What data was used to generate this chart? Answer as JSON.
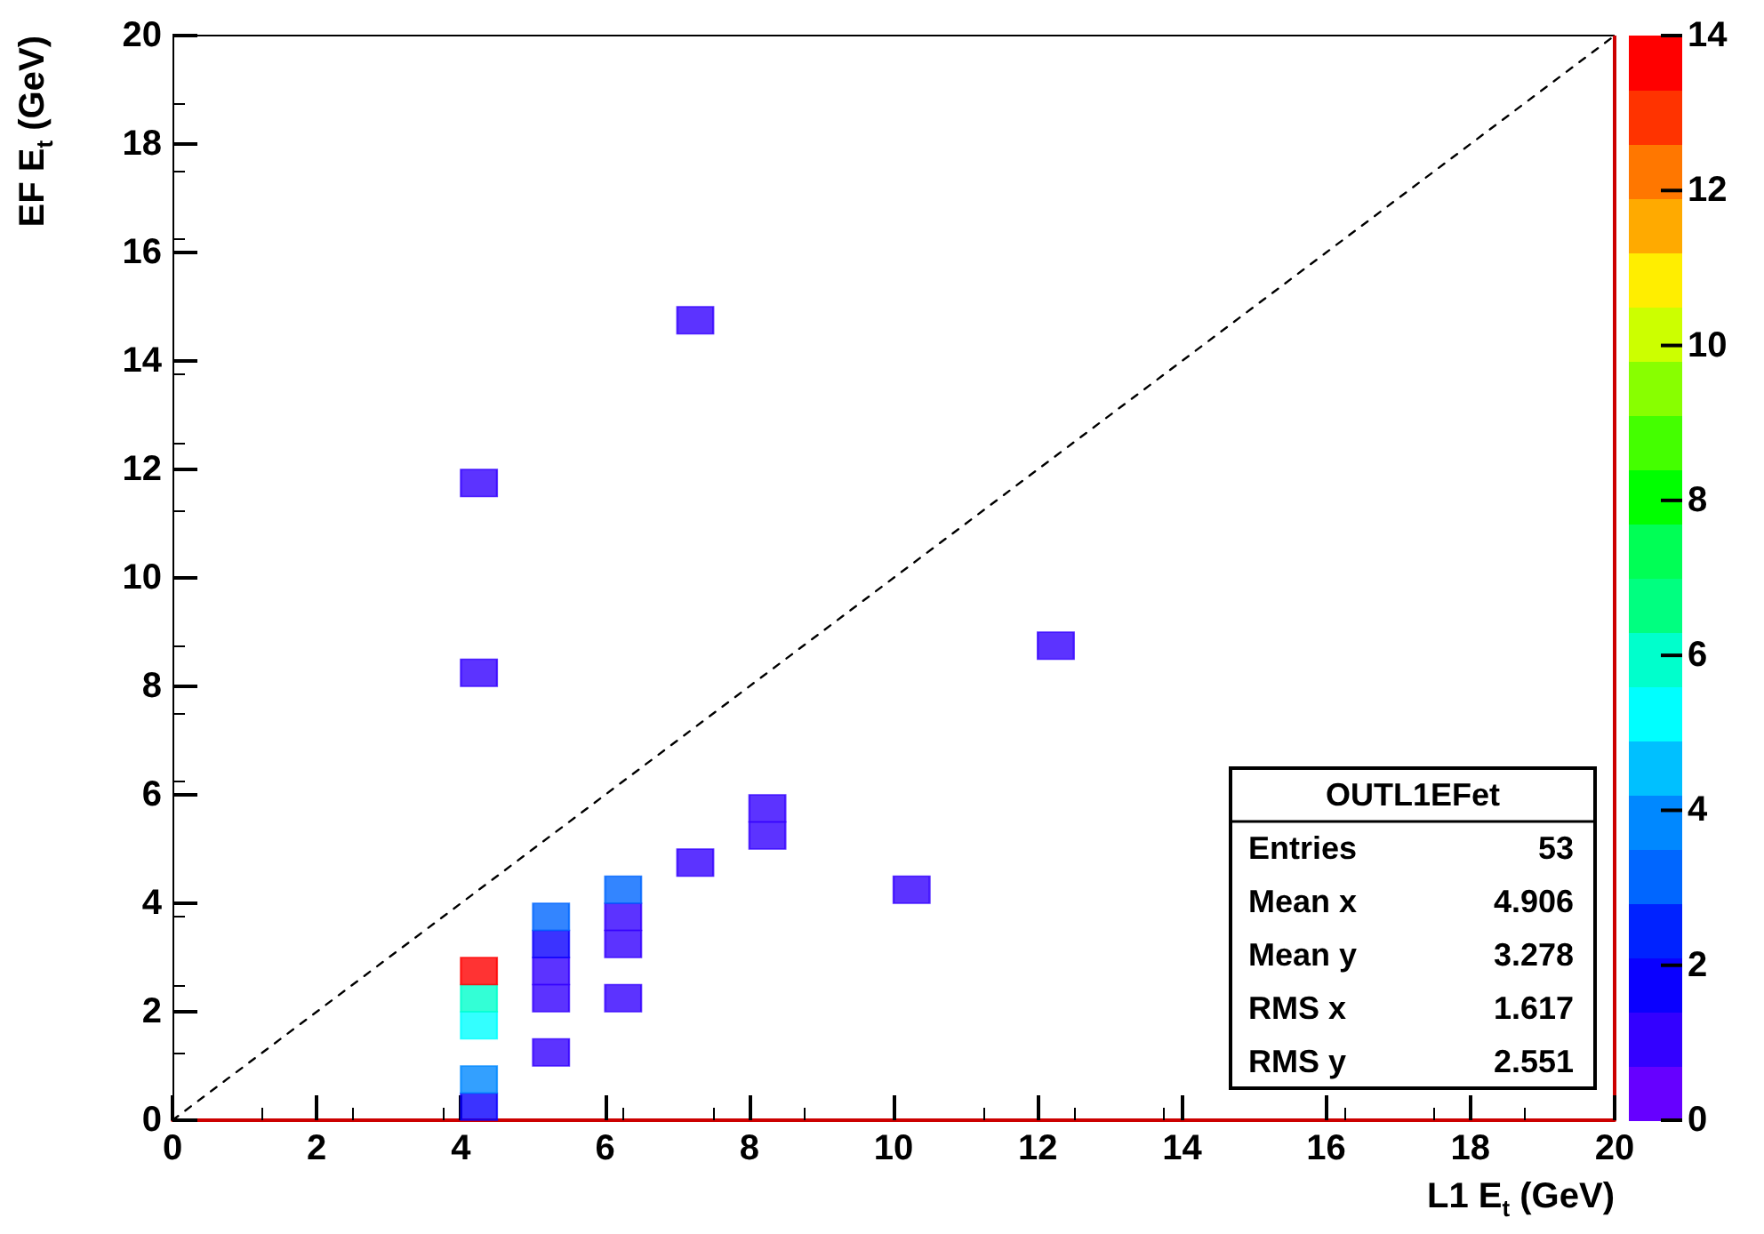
{
  "chart_data": {
    "type": "scatter",
    "xlabel": "L1 E$_{t}$ (GeV)",
    "ylabel": "EF E$_{t}$ (GeV)",
    "xlim": [
      0,
      20
    ],
    "xticks": [
      0,
      2,
      4,
      6,
      8,
      10,
      12,
      14,
      16,
      18,
      20
    ],
    "ylim": [
      0,
      20
    ],
    "yticks": [
      0,
      2,
      4,
      6,
      8,
      10,
      12,
      14,
      16,
      18,
      20
    ],
    "clim": [
      0,
      14
    ],
    "cticks": [
      0,
      2,
      4,
      6,
      8,
      10,
      12,
      14
    ],
    "grid": false,
    "series": [
      {
        "marker": "square",
        "colors": [
          "#0a00ff",
          "#0088ff",
          "#00ffff",
          "#00ffcc",
          "#ff0000",
          "#3300ff",
          "#3300ff",
          "#3300ff",
          "#3300ff",
          "#3300ff",
          "#0a00ff",
          "#0066ff",
          "#3300ff",
          "#3300ff",
          "#3300ff",
          "#0066ff",
          "#3300ff",
          "#3300ff",
          "#3300ff",
          "#3300ff",
          "#3300ff",
          "#3300ff"
        ],
        "x": [
          4.25,
          4.25,
          4.25,
          4.25,
          4.25,
          4.25,
          4.25,
          5.25,
          5.25,
          5.25,
          5.25,
          5.25,
          6.25,
          6.25,
          6.25,
          6.25,
          7.25,
          7.25,
          8.25,
          8.25,
          10.25,
          12.25
        ],
        "values": [
          0.25,
          0.75,
          1.75,
          2.25,
          2.75,
          8.25,
          11.75,
          1.25,
          2.25,
          2.75,
          3.25,
          3.75,
          2.25,
          3.25,
          3.75,
          4.25,
          4.75,
          14.75,
          5.25,
          5.75,
          4.25,
          8.75
        ],
        "cvalues": [
          2,
          4,
          5,
          6,
          14,
          1,
          1,
          1,
          1,
          1,
          2,
          3,
          1,
          1,
          1,
          3,
          1,
          1,
          1,
          1,
          1,
          1
        ]
      },
      {
        "type": "line",
        "color": "#000000",
        "line_style": "dashed",
        "marker": "none",
        "x": [
          0,
          20
        ],
        "values": [
          0,
          20
        ]
      }
    ],
    "annotations": [
      "OUTL1EFet",
      "Entries 53",
      "Mean x 4.906",
      "Mean y 3.278",
      "RMS x 1.617",
      "RMS y 2.551"
    ]
  }
}
